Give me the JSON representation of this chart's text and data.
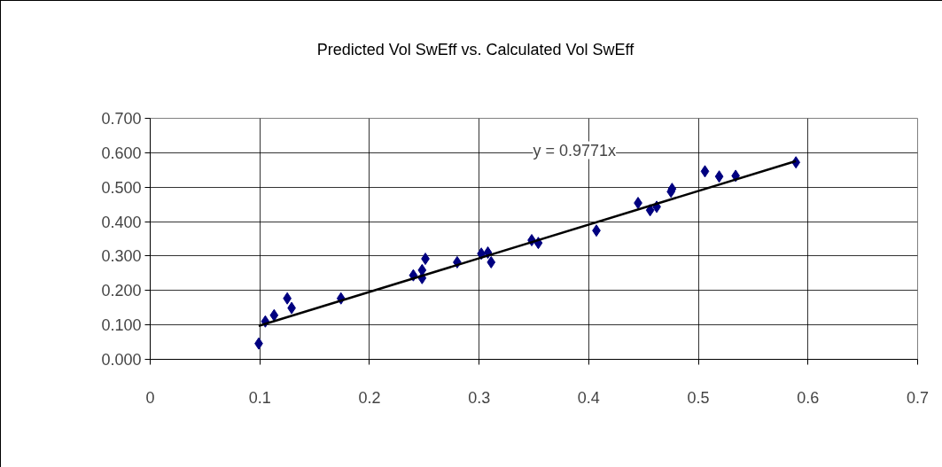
{
  "chart_data": {
    "type": "scatter",
    "title": "Predicted Vol SwEff vs. Calculated Vol SwEff",
    "annotations": [
      "y = 0.9771x"
    ],
    "series": [
      {
        "color": "#000080",
        "marker": "diamond",
        "x": [
          0.099,
          0.105,
          0.113,
          0.125,
          0.129,
          0.174,
          0.24,
          0.248,
          0.248,
          0.251,
          0.28,
          0.302,
          0.308,
          0.311,
          0.348,
          0.354,
          0.407,
          0.445,
          0.456,
          0.462,
          0.475,
          0.476,
          0.506,
          0.519,
          0.534,
          0.589
        ],
        "values": [
          0.046,
          0.11,
          0.128,
          0.177,
          0.149,
          0.177,
          0.244,
          0.259,
          0.236,
          0.292,
          0.282,
          0.307,
          0.31,
          0.282,
          0.346,
          0.338,
          0.374,
          0.454,
          0.433,
          0.443,
          0.487,
          0.495,
          0.546,
          0.531,
          0.533,
          0.572
        ]
      },
      {
        "type": "line",
        "color": "#000000",
        "line_style": "solid",
        "x": [
          0.099,
          0.589
        ],
        "values": [
          0.097,
          0.576
        ]
      }
    ],
    "xlim": [
      0,
      0.7
    ],
    "xticks": [
      0,
      0.1,
      0.2,
      0.3,
      0.4,
      0.5,
      0.6,
      0.7
    ],
    "ylim": [
      0,
      0.7
    ],
    "yticks": [
      {
        "value": 0,
        "label": "0.000"
      },
      {
        "value": 0.1,
        "label": "0.100"
      },
      {
        "value": 0.2,
        "label": "0.200"
      },
      {
        "value": 0.3,
        "label": "0.300"
      },
      {
        "value": 0.4,
        "label": "0.400"
      },
      {
        "value": 0.5,
        "label": "0.500"
      },
      {
        "value": 0.6,
        "label": "0.600"
      },
      {
        "value": 0.7,
        "label": "0.700"
      }
    ],
    "grid": true
  }
}
